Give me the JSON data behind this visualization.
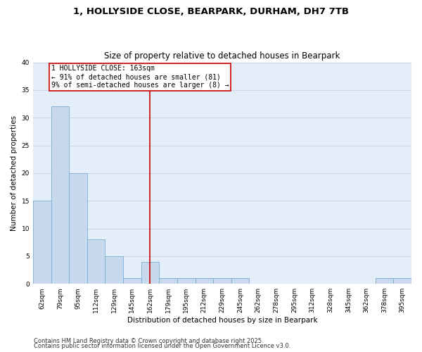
{
  "title1": "1, HOLLYSIDE CLOSE, BEARPARK, DURHAM, DH7 7TB",
  "title2": "Size of property relative to detached houses in Bearpark",
  "xlabel": "Distribution of detached houses by size in Bearpark",
  "ylabel": "Number of detached properties",
  "categories": [
    "62sqm",
    "79sqm",
    "95sqm",
    "112sqm",
    "129sqm",
    "145sqm",
    "162sqm",
    "179sqm",
    "195sqm",
    "212sqm",
    "229sqm",
    "245sqm",
    "262sqm",
    "278sqm",
    "295sqm",
    "312sqm",
    "328sqm",
    "345sqm",
    "362sqm",
    "378sqm",
    "395sqm"
  ],
  "values": [
    15,
    32,
    20,
    8,
    5,
    1,
    4,
    1,
    1,
    1,
    1,
    1,
    0,
    0,
    0,
    0,
    0,
    0,
    0,
    1,
    1
  ],
  "bar_color": "#C8D9EE",
  "bar_edge_color": "#7aadd4",
  "vline_x": 6,
  "vline_color": "#CC0000",
  "annotation_text": "1 HOLLYSIDE CLOSE: 163sqm\n← 91% of detached houses are smaller (81)\n9% of semi-detached houses are larger (8) →",
  "annotation_box_color": "#CC0000",
  "ylim": [
    0,
    40
  ],
  "yticks": [
    0,
    5,
    10,
    15,
    20,
    25,
    30,
    35,
    40
  ],
  "grid_color": "#C8D8E8",
  "background_color": "#E4EEF8",
  "fig_background": "#FFFFFF",
  "footer1": "Contains HM Land Registry data © Crown copyright and database right 2025.",
  "footer2": "Contains public sector information licensed under the Open Government Licence v3.0."
}
